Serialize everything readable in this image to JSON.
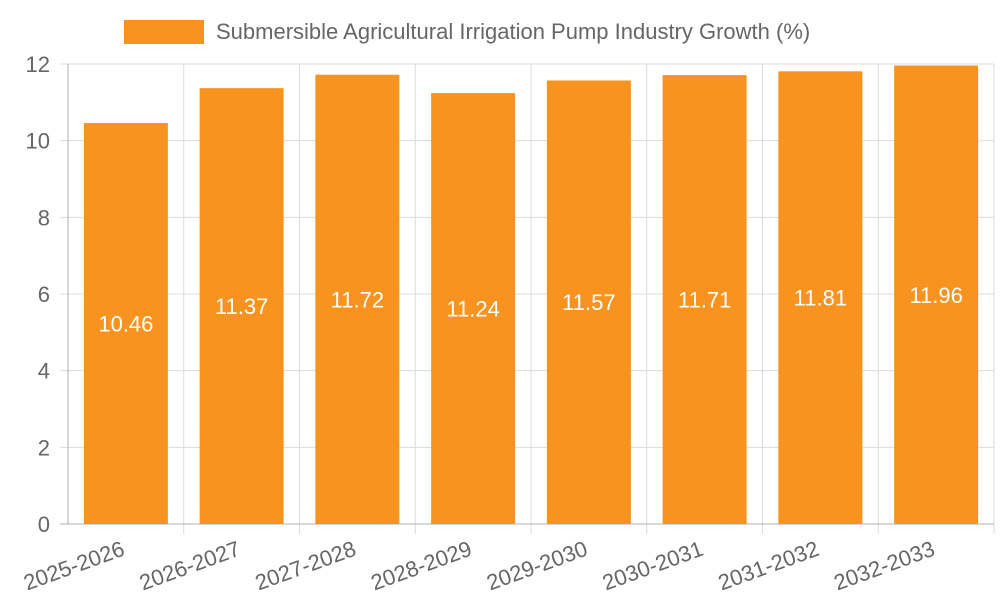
{
  "chart_data": {
    "type": "bar",
    "legend": {
      "label": "Submersible Agricultural Irrigation Pump Industry Growth (%)",
      "position": "top"
    },
    "categories": [
      "2025-2026",
      "2026-2027",
      "2027-2028",
      "2028-2029",
      "2029-2030",
      "2030-2031",
      "2031-2032",
      "2032-2033"
    ],
    "series": [
      {
        "name": "Submersible Agricultural Irrigation Pump Industry Growth (%)",
        "values": [
          10.46,
          11.37,
          11.72,
          11.24,
          11.57,
          11.71,
          11.81,
          11.96
        ]
      }
    ],
    "data_labels": [
      "10.46",
      "11.37",
      "11.72",
      "11.24",
      "11.57",
      "11.71",
      "11.81",
      "11.96"
    ],
    "ylim": [
      0,
      12
    ],
    "yticks": [
      "0",
      "2",
      "4",
      "6",
      "8",
      "10",
      "12"
    ],
    "grid": true,
    "colors": {
      "bar": "#f7931e",
      "bar_label": "#ffffff",
      "text": "#666666",
      "grid": "#dcdcdc",
      "axis": "#b0b0b0"
    }
  }
}
